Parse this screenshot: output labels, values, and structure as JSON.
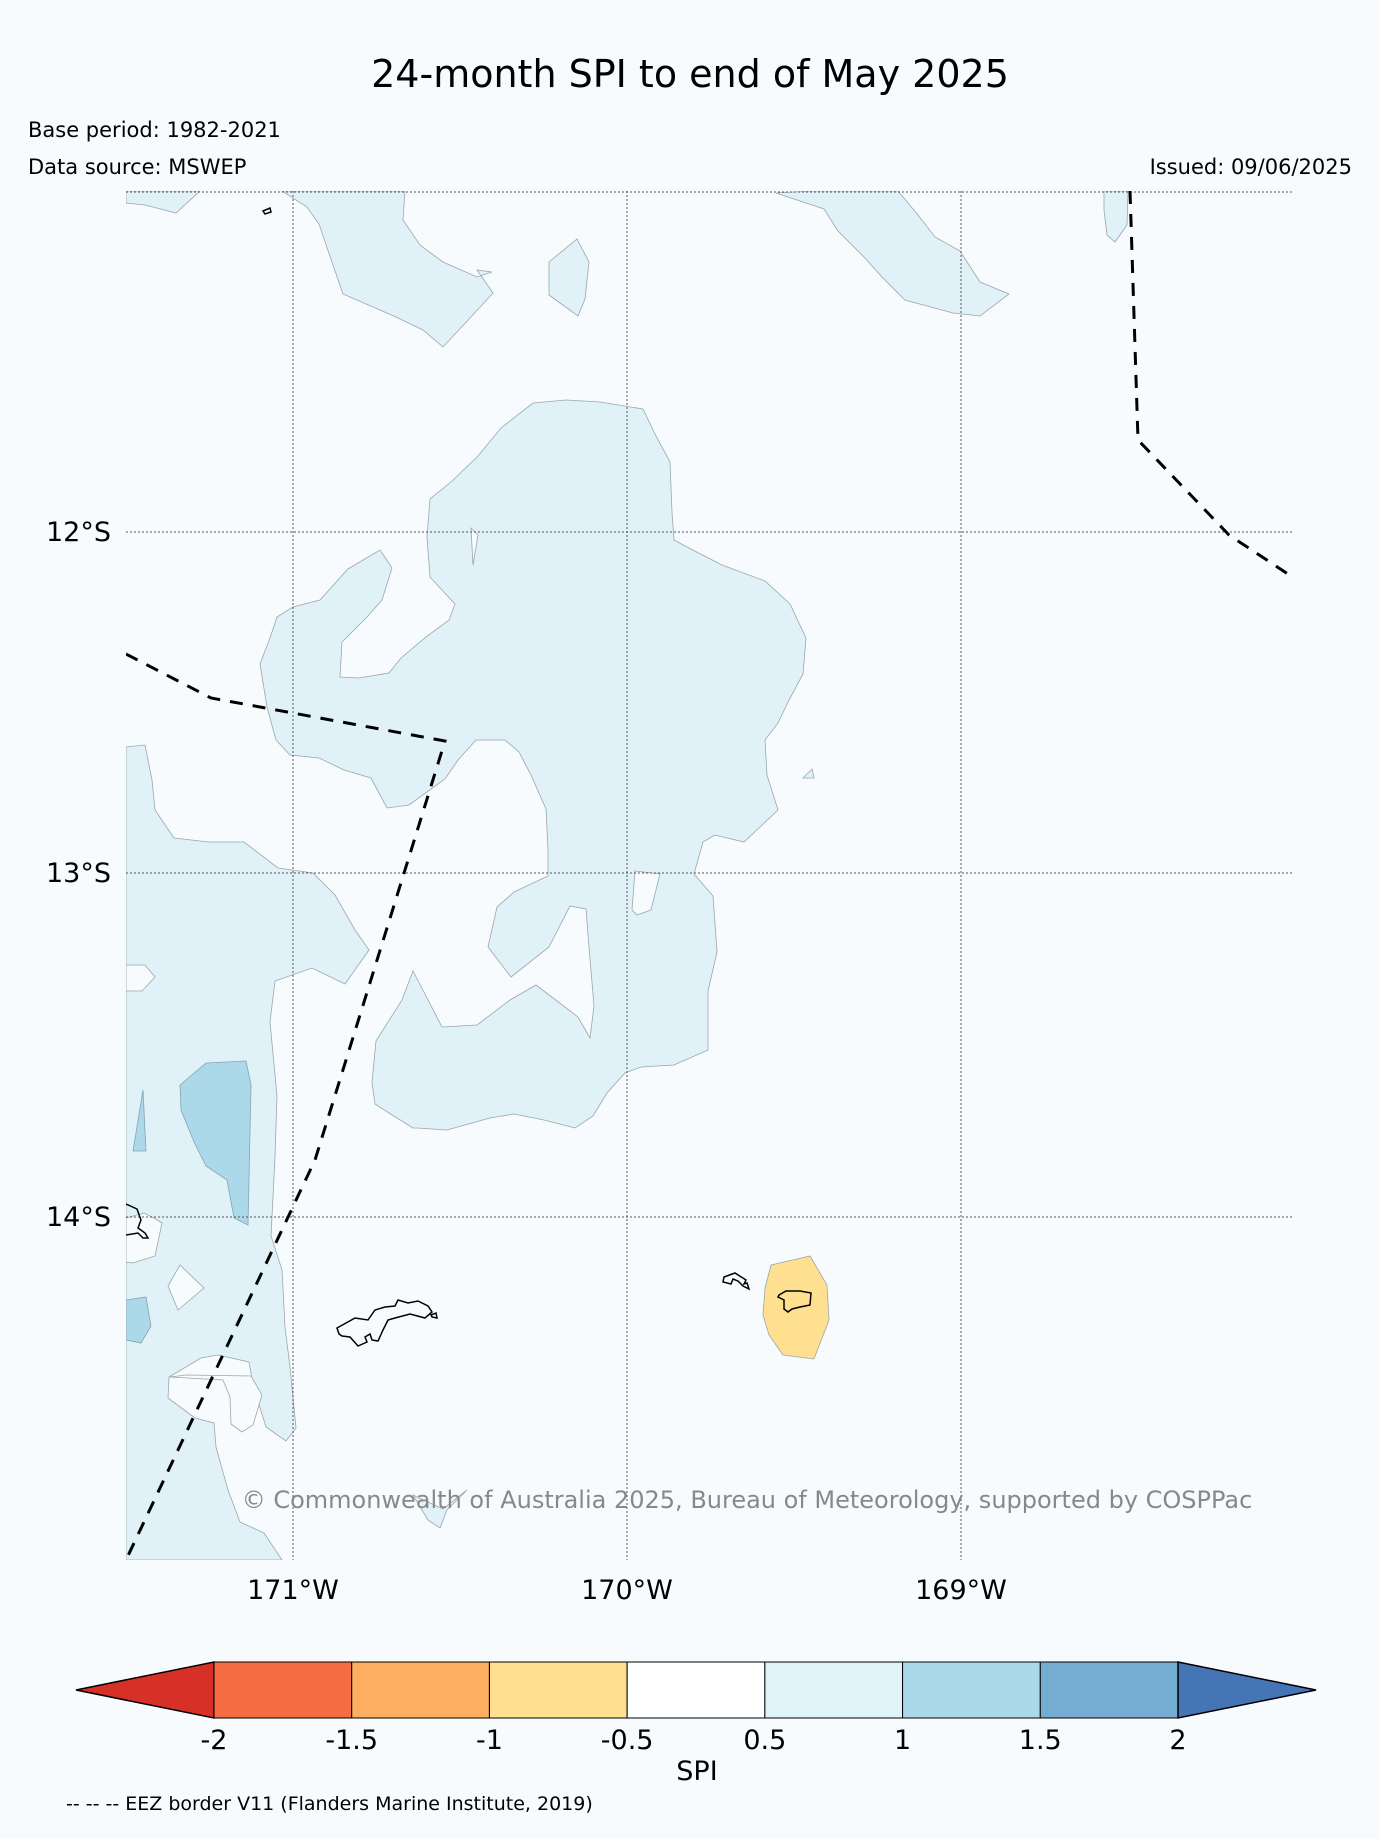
{
  "header": {
    "title": "24-month SPI to end of May 2025",
    "base_period": "Base period: 1982-2021",
    "data_source": "Data source: MSWEP",
    "issued": "Issued: 09/06/2025"
  },
  "map": {
    "lat_labels": [
      "12°S",
      "13°S",
      "14°S"
    ],
    "lon_labels": [
      "171°W",
      "170°W",
      "169°W"
    ],
    "copyright": "© Commonwealth of Australia 2025, Bureau of Meteorology, supported by COSPPac",
    "colors": {
      "ocean": "#f7fbfd",
      "spi_0_5_to_1": "#e0f2f8",
      "spi_1_to_1_5": "#abd9e9",
      "spi_neg1_to_neg0_5": "#fee090"
    }
  },
  "colorbar": {
    "label": "SPI",
    "ticks": [
      "-2",
      "-1.5",
      "-1",
      "-0.5",
      "0.5",
      "1",
      "1.5",
      "2"
    ],
    "colors": [
      "#d73027",
      "#f46d43",
      "#fdae61",
      "#fee090",
      "#ffffff",
      "#e0f3f8",
      "#abd9e9",
      "#74add1",
      "#4575b4"
    ]
  },
  "footer": {
    "eez_note": "-- -- -- EEZ border V11 (Flanders Marine Institute, 2019)"
  }
}
